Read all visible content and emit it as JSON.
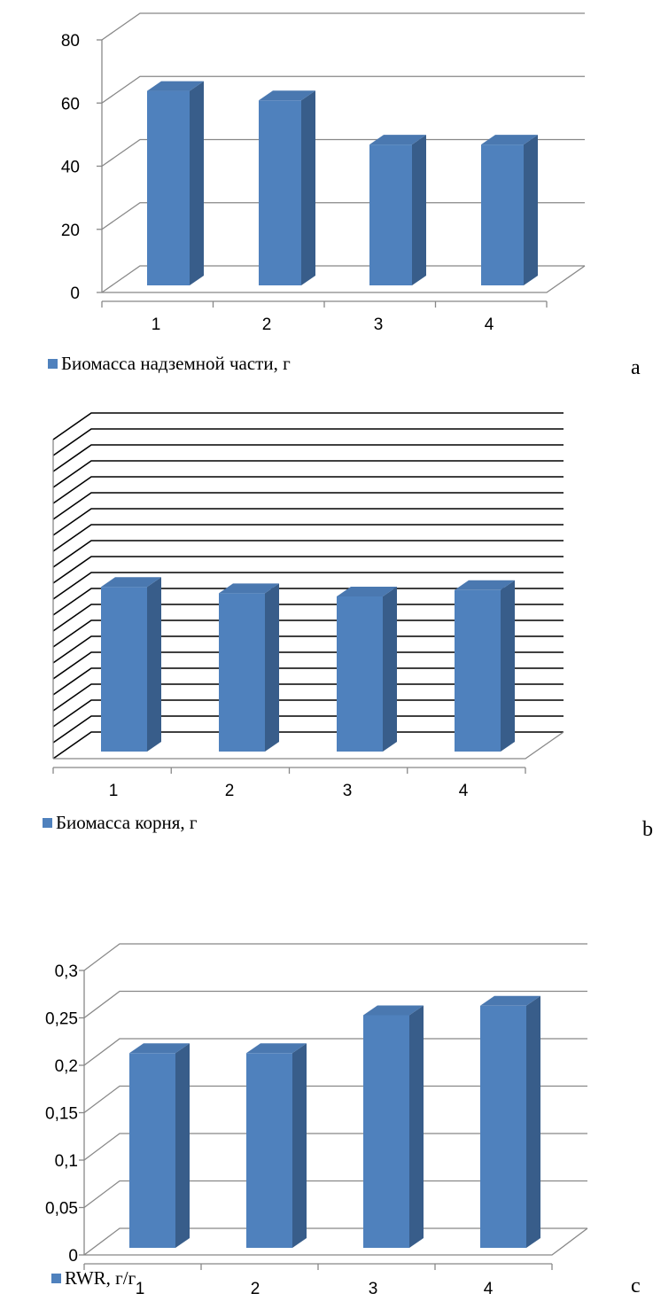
{
  "chart_data": [
    {
      "type": "bar",
      "categories": [
        "1",
        "2",
        "3",
        "4"
      ],
      "series": [
        {
          "name": "Биомасса надземной части, г",
          "values": [
            63,
            60,
            46,
            46
          ]
        }
      ],
      "ylim": [
        0,
        80
      ],
      "yticks": [
        "0",
        "20",
        "40",
        "60",
        "80"
      ],
      "panel_letter": "a",
      "grid": true,
      "legend": "bottom-left",
      "bar_color": "#4F81BD"
    },
    {
      "type": "bar",
      "categories": [
        "1",
        "2",
        "3",
        "4"
      ],
      "series": [
        {
          "name": "Биомасса корня, г",
          "values": [
            53,
            51,
            50,
            52
          ]
        }
      ],
      "ylim": [
        0,
        100
      ],
      "yticks": [],
      "panel_letter": "b",
      "grid": true,
      "legend": "bottom-left",
      "bar_color": "#4F81BD"
    },
    {
      "type": "bar",
      "categories": [
        "1",
        "2",
        "3",
        "4"
      ],
      "series": [
        {
          "name": "RWR, г/г",
          "values": [
            0.21,
            0.21,
            0.25,
            0.26
          ]
        }
      ],
      "ylim": [
        0,
        0.3
      ],
      "yticks": [
        "0",
        "0,05",
        "0,1",
        "0,15",
        "0,2",
        "0,25",
        "0,3"
      ],
      "panel_letter": "c",
      "grid": true,
      "legend": "bottom-left",
      "bar_color": "#4F81BD"
    }
  ]
}
